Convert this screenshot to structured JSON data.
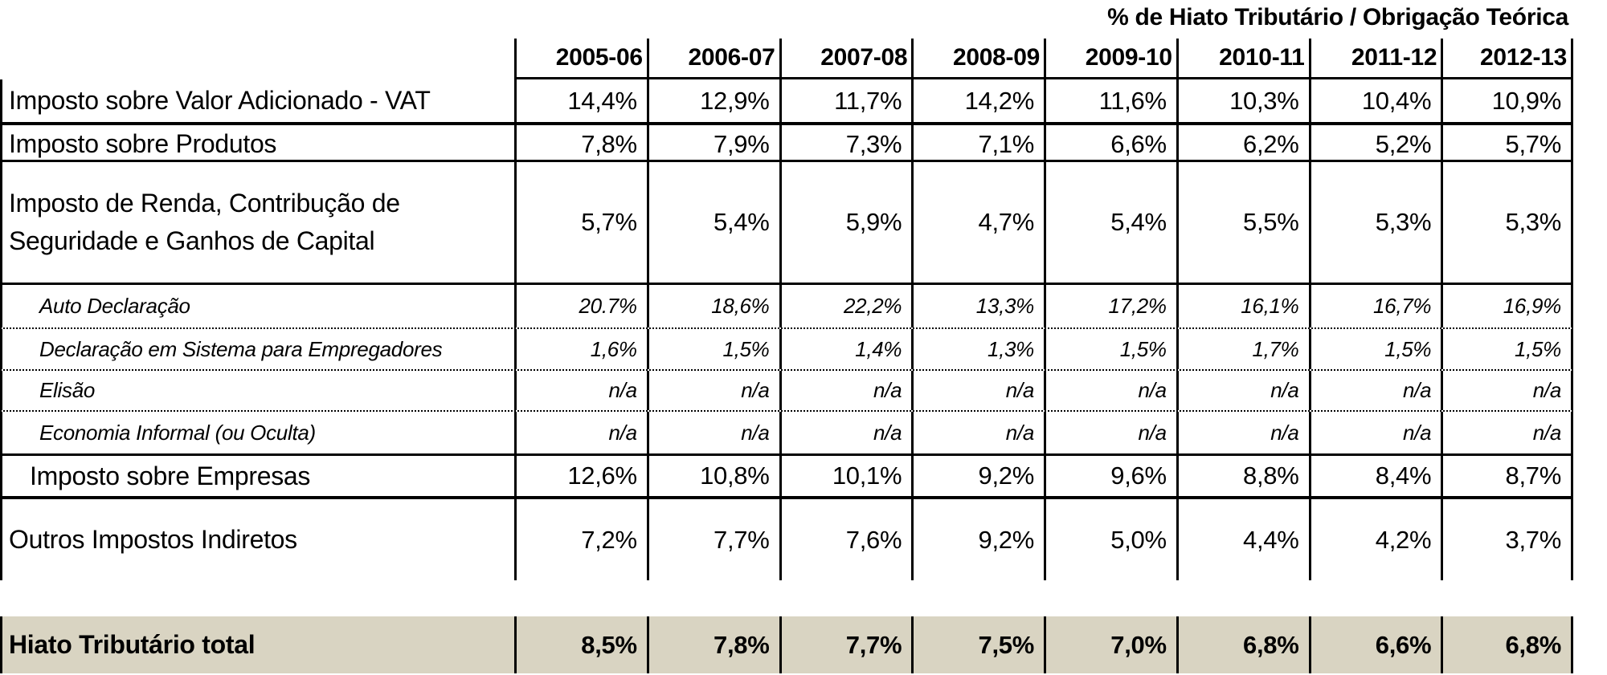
{
  "title": "% de Hiato Tributário / Obrigação Teórica",
  "columns": [
    "2005-06",
    "2006-07",
    "2007-08",
    "2008-09",
    "2009-10",
    "2010-11",
    "2011-12",
    "2012-13"
  ],
  "rows": [
    {
      "label": "Imposto sobre Valor Adicionado - VAT",
      "level": "main",
      "values": [
        "14,4%",
        "12,9%",
        "11,7%",
        "14,2%",
        "11,6%",
        "10,3%",
        "10,4%",
        "10,9%"
      ]
    },
    {
      "label": "Imposto sobre Produtos",
      "level": "main",
      "values": [
        "7,8%",
        "7,9%",
        "7,3%",
        "7,1%",
        "6,6%",
        "6,2%",
        "5,2%",
        "5,7%"
      ]
    },
    {
      "label": "Imposto de Renda, Contribução de Seguridade e Ganhos de Capital",
      "level": "main",
      "values": [
        "5,7%",
        "5,4%",
        "5,9%",
        "4,7%",
        "5,4%",
        "5,5%",
        "5,3%",
        "5,3%"
      ]
    },
    {
      "label": "Auto Declaração",
      "level": "sub-italic",
      "values": [
        "20.7%",
        "18,6%",
        "22,2%",
        "13,3%",
        "17,2%",
        "16,1%",
        "16,7%",
        "16,9%"
      ]
    },
    {
      "label": "Declaração em Sistema para Empregadores",
      "level": "sub-italic",
      "values": [
        "1,6%",
        "1,5%",
        "1,4%",
        "1,3%",
        "1,5%",
        "1,7%",
        "1,5%",
        "1,5%"
      ]
    },
    {
      "label": "Elisão",
      "level": "sub-italic",
      "values": [
        "n/a",
        "n/a",
        "n/a",
        "n/a",
        "n/a",
        "n/a",
        "n/a",
        "n/a"
      ]
    },
    {
      "label": "Economia Informal (ou Oculta)",
      "level": "sub-italic",
      "values": [
        "n/a",
        "n/a",
        "n/a",
        "n/a",
        "n/a",
        "n/a",
        "n/a",
        "n/a"
      ]
    },
    {
      "label": "Imposto sobre Empresas",
      "level": "sub",
      "values": [
        "12,6%",
        "10,8%",
        "10,1%",
        "9,2%",
        "9,6%",
        "8,8%",
        "8,4%",
        "8,7%"
      ]
    },
    {
      "label": "Outros Impostos Indiretos",
      "level": "main",
      "values": [
        "7,2%",
        "7,7%",
        "7,6%",
        "9,2%",
        "5,0%",
        "4,4%",
        "4,2%",
        "3,7%"
      ]
    }
  ],
  "total_row": {
    "label": "Hiato Tributário total",
    "values": [
      "8,5%",
      "7,8%",
      "7,7%",
      "7,5%",
      "7,0%",
      "6,8%",
      "6,6%",
      "6,8%"
    ]
  },
  "colors": {
    "total_row_bg": "#D9D4C2",
    "border": "#000000"
  }
}
